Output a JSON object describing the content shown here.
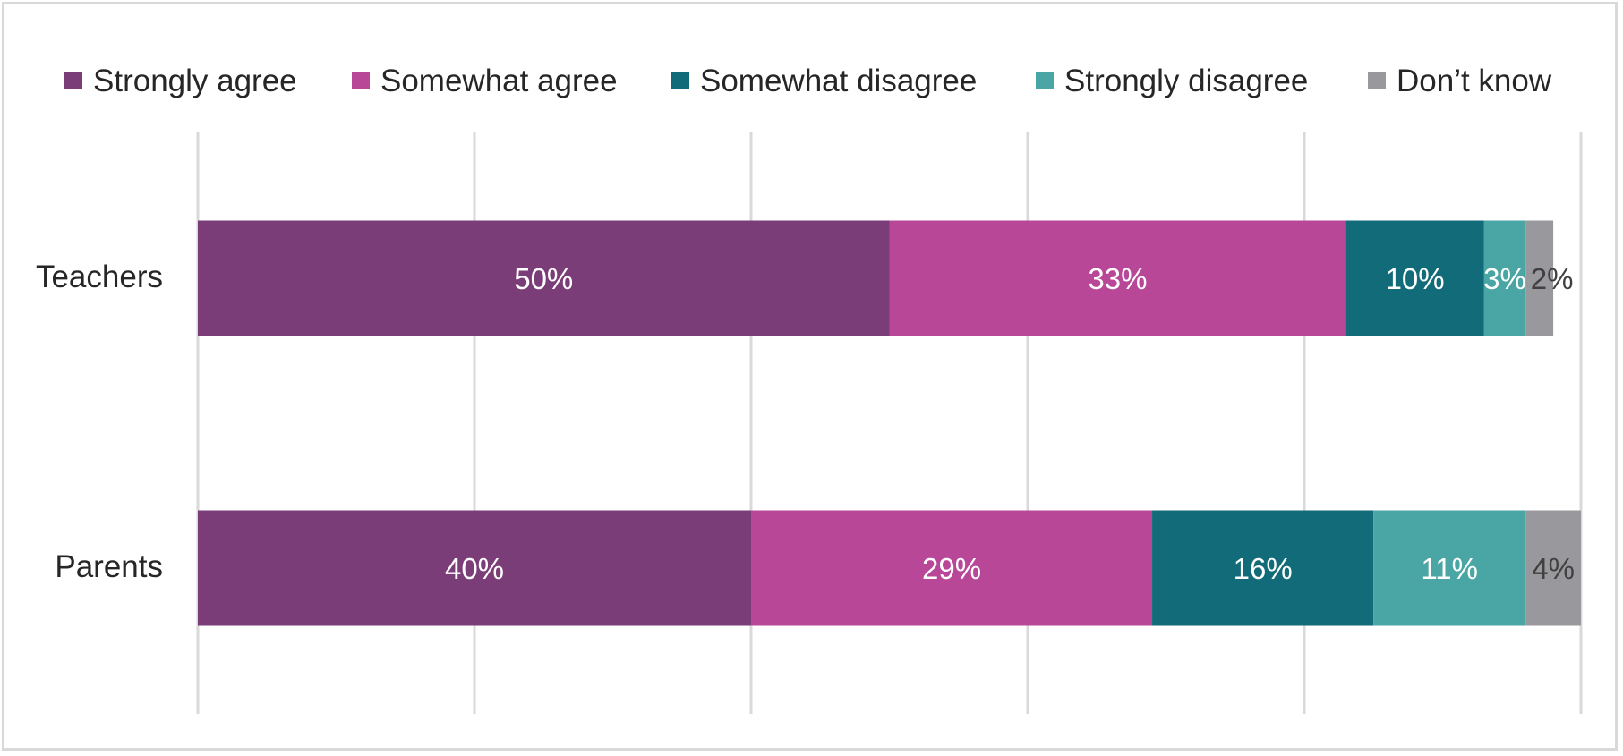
{
  "chart_data": {
    "type": "bar",
    "orientation": "horizontal",
    "stacked": true,
    "categories": [
      "Teachers",
      "Parents"
    ],
    "series": [
      {
        "name": "Strongly agree",
        "color": "#7a3d78",
        "label_color": "#ffffff",
        "values": [
          50,
          40
        ],
        "labels": [
          "50%",
          "40%"
        ]
      },
      {
        "name": "Somewhat agree",
        "color": "#b84798",
        "label_color": "#ffffff",
        "values": [
          33,
          29
        ],
        "labels": [
          "33%",
          "29%"
        ]
      },
      {
        "name": "Somewhat disagree",
        "color": "#116b78",
        "label_color": "#ffffff",
        "values": [
          10,
          16
        ],
        "labels": [
          "10%",
          "16%"
        ]
      },
      {
        "name": "Strongly disagree",
        "color": "#4aa6a4",
        "label_color": "#ffffff",
        "values": [
          3,
          11
        ],
        "labels": [
          "3%",
          "11%"
        ]
      },
      {
        "name": "Don’t know",
        "color": "#98989d",
        "label_color": "#404040",
        "values": [
          2,
          4
        ],
        "labels": [
          "2%",
          "4%"
        ]
      }
    ],
    "xlim": [
      0,
      100
    ],
    "grid": true,
    "legend_position": "top",
    "gridline_color": "#d9d9d9"
  }
}
